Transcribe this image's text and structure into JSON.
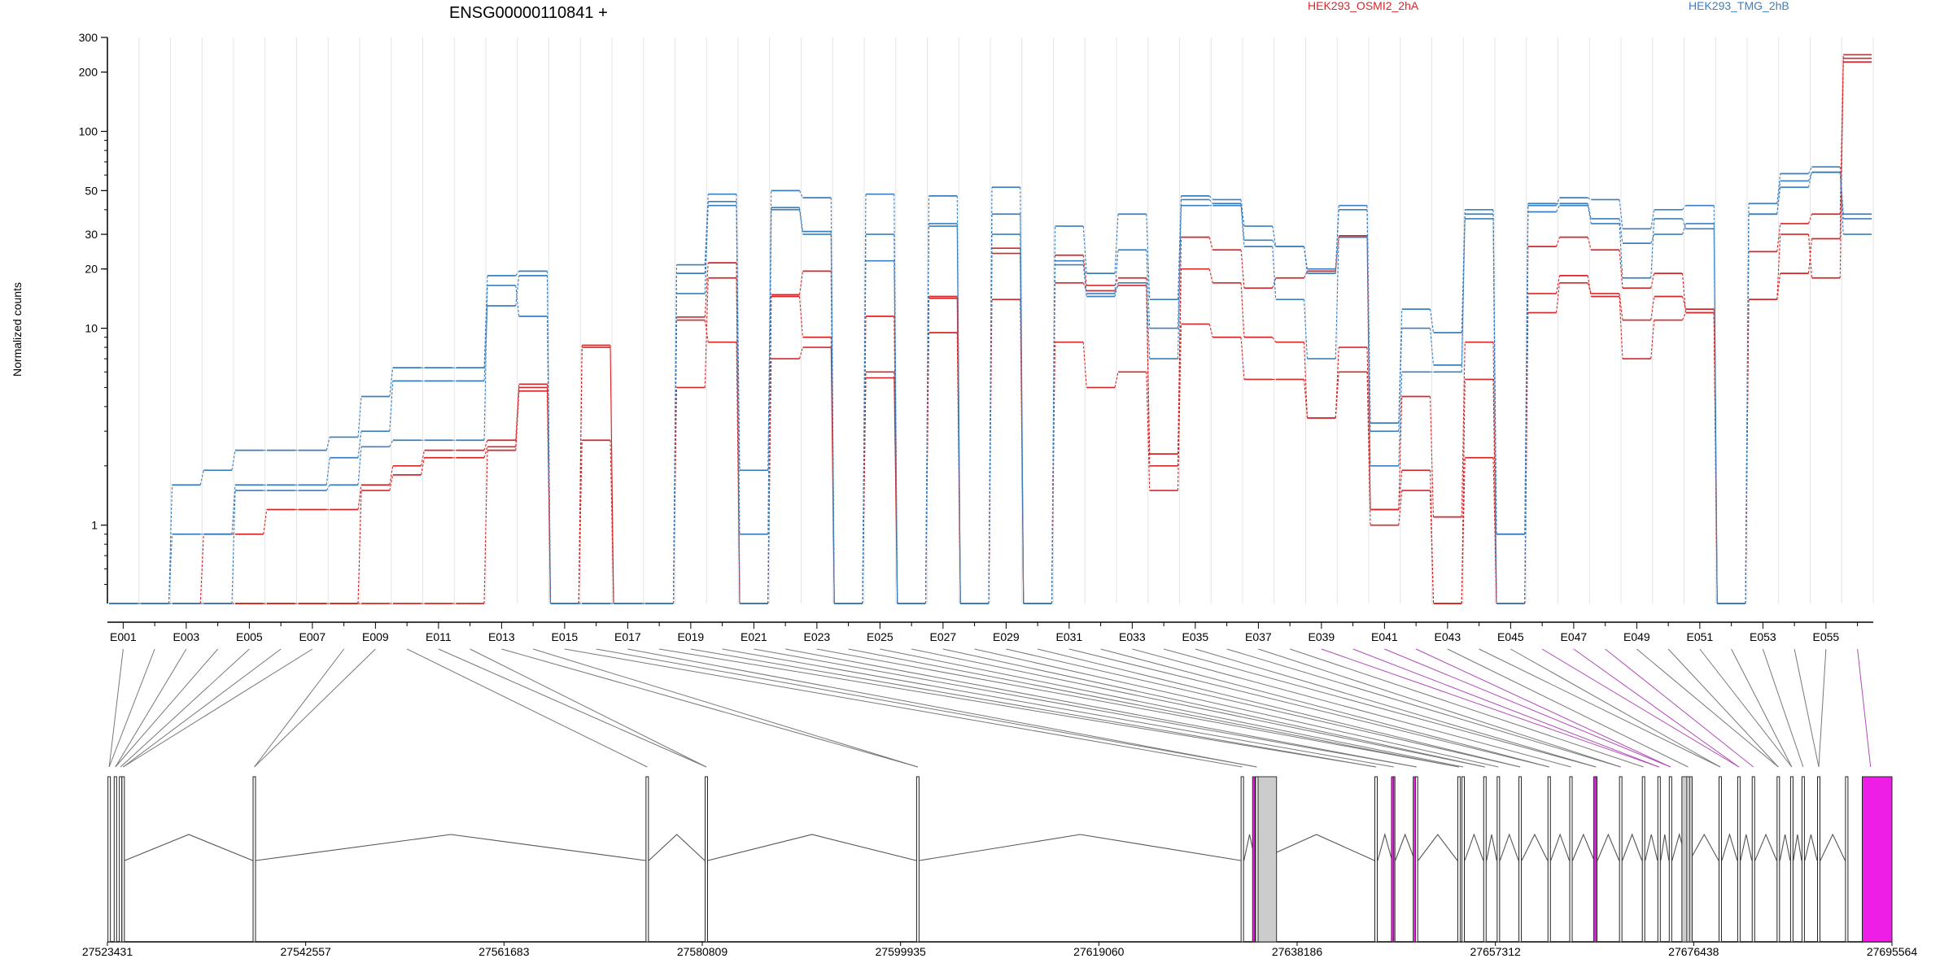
{
  "title": "ENSG00000110841 +",
  "colors": {
    "condA": "#d62728",
    "condB": "#3a7fbf",
    "junction": "#555555",
    "highlight": "#ee1ee6",
    "gray_exon": "#cccccc"
  },
  "legend": [
    {
      "name": "HEK293_OSMI2_2hA",
      "color": "#d62728"
    },
    {
      "name": "HEK293_TMG_2hB",
      "color": "#3a7fbf"
    }
  ],
  "ylabel": "Normalized counts",
  "chart_data": {
    "type": "line",
    "yscale": "log",
    "ylim": [
      0.4,
      300
    ],
    "yticks": [
      1,
      10,
      20,
      30,
      50,
      100,
      200,
      300
    ],
    "exon_labels": [
      "E001",
      "E003",
      "E005",
      "E007",
      "E009",
      "E011",
      "E013",
      "E015",
      "E017",
      "E019",
      "E021",
      "E023",
      "E025",
      "E027",
      "E029",
      "E031",
      "E033",
      "E035",
      "E037",
      "E039",
      "E041",
      "E043",
      "E045",
      "E047",
      "E049",
      "E051",
      "E053",
      "E055"
    ],
    "exon_count": 56,
    "series": [
      {
        "group": "HEK293_OSMI2_2hA",
        "values": [
          0.4,
          0.4,
          0.4,
          0.9,
          0.9,
          1.2,
          1.2,
          1.2,
          1.6,
          2.0,
          2.4,
          2.4,
          2.7,
          5.2,
          0.4,
          8.2,
          0.4,
          0.4,
          11.4,
          21.5,
          0.4,
          14.8,
          19.5,
          0.4,
          5.6,
          0.4,
          14.2,
          0.4,
          25.5,
          0.4,
          23.5,
          16.5,
          18.0,
          2.0,
          29.0,
          25.0,
          16.0,
          18.0,
          19.5,
          29.5,
          1.2,
          4.5,
          1.1,
          8.5,
          0.4,
          26.0,
          29.0,
          25.0,
          16.0,
          19.0,
          12.0,
          0.4,
          24.5,
          34.0,
          38.0,
          235
        ]
      },
      {
        "group": "HEK293_OSMI2_2hA",
        "values": [
          0.4,
          0.4,
          0.4,
          0.4,
          0.4,
          0.4,
          0.4,
          0.4,
          1.5,
          1.8,
          2.2,
          2.2,
          2.5,
          5.0,
          0.4,
          8.0,
          0.4,
          0.4,
          5.0,
          18.0,
          0.4,
          14.5,
          9.0,
          0.4,
          6.0,
          0.4,
          14.5,
          0.4,
          24.0,
          0.4,
          17.0,
          15.5,
          16.5,
          2.3,
          20.0,
          17.0,
          9.0,
          8.5,
          3.5,
          6.0,
          1.0,
          1.5,
          0.4,
          5.5,
          0.4,
          12.0,
          17.0,
          15.0,
          11.0,
          14.5,
          12.5,
          0.4,
          14.0,
          19.0,
          28.5,
          225
        ]
      },
      {
        "group": "HEK293_OSMI2_2hA",
        "values": [
          0.4,
          0.4,
          0.4,
          0.4,
          0.4,
          0.4,
          0.4,
          0.4,
          0.4,
          0.4,
          0.4,
          0.4,
          2.4,
          4.8,
          0.4,
          2.7,
          0.4,
          0.4,
          11.0,
          8.5,
          0.4,
          7.0,
          8.0,
          0.4,
          11.5,
          0.4,
          9.5,
          0.4,
          14.0,
          0.4,
          8.5,
          5.0,
          6.0,
          1.5,
          10.5,
          9.0,
          5.5,
          5.5,
          3.5,
          8.0,
          1.2,
          1.9,
          0.4,
          2.2,
          0.4,
          15.0,
          18.5,
          14.5,
          7.0,
          11.0,
          12.0,
          0.4,
          14.0,
          30.0,
          18.0,
          245
        ]
      },
      {
        "group": "HEK293_TMG_2hB",
        "values": [
          0.4,
          0.4,
          1.6,
          1.9,
          2.4,
          2.4,
          2.4,
          2.8,
          4.5,
          6.3,
          6.3,
          6.3,
          18.5,
          19.5,
          0.4,
          0.4,
          0.4,
          0.4,
          21.0,
          48.0,
          1.9,
          50.0,
          46.0,
          0.4,
          48.0,
          0.4,
          47.0,
          0.4,
          52.0,
          0.4,
          33.0,
          19.0,
          38.0,
          14.0,
          47.0,
          45.0,
          33.0,
          26.0,
          20.0,
          42.0,
          3.3,
          12.5,
          9.5,
          40.0,
          0.9,
          42.0,
          46.0,
          45.0,
          32.0,
          40.0,
          42.0,
          0.4,
          43.0,
          61.0,
          66.0,
          38.0
        ]
      },
      {
        "group": "HEK293_TMG_2hB",
        "values": [
          0.4,
          0.4,
          0.9,
          0.9,
          1.6,
          1.6,
          1.6,
          2.2,
          3.0,
          5.4,
          5.4,
          5.4,
          13.0,
          18.5,
          0.4,
          0.4,
          0.4,
          0.4,
          15.0,
          42.0,
          0.9,
          40.0,
          30.0,
          0.4,
          30.0,
          0.4,
          34.0,
          0.4,
          38.0,
          0.4,
          22.0,
          15.0,
          25.0,
          10.0,
          45.0,
          43.0,
          28.0,
          26.0,
          19.0,
          40.0,
          3.0,
          10.0,
          6.5,
          38.0,
          0.9,
          43.0,
          43.0,
          36.0,
          27.0,
          30.0,
          34.0,
          0.4,
          38.0,
          52.0,
          62.0,
          36.0
        ]
      },
      {
        "group": "HEK293_TMG_2hB",
        "values": [
          0.4,
          0.4,
          0.4,
          0.4,
          1.5,
          1.5,
          1.5,
          1.6,
          2.5,
          2.7,
          2.7,
          2.7,
          16.5,
          11.5,
          0.4,
          0.4,
          0.4,
          0.4,
          19.0,
          44.0,
          0.4,
          41.0,
          31.0,
          0.4,
          22.0,
          0.4,
          33.0,
          0.4,
          30.0,
          0.4,
          21.0,
          14.5,
          17.0,
          7.0,
          42.0,
          42.0,
          26.0,
          14.0,
          7.0,
          29.0,
          2.0,
          6.0,
          6.0,
          36.0,
          0.4,
          39.0,
          42.0,
          34.0,
          18.0,
          36.0,
          32.0,
          0.4,
          38.0,
          56.0,
          62.0,
          30.0
        ]
      }
    ],
    "gene_track": {
      "start": 27523431,
      "end": 27695564,
      "ticks": [
        "27523431",
        "27542557",
        "27561683",
        "27580809",
        "27599935",
        "27619060",
        "27638186",
        "27657312",
        "27676438",
        "27695564"
      ]
    }
  }
}
